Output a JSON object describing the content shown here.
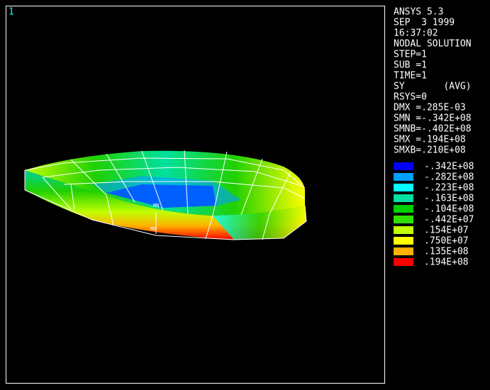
{
  "window": {
    "number": "1"
  },
  "info": [
    "ANSYS 5.3",
    "SEP  3 1999",
    "16:37:02",
    "NODAL SOLUTION",
    "STEP=1",
    "SUB =1",
    "TIME=1",
    "SY       (AVG)",
    "RSYS=0",
    "DMX =.285E-03",
    "SMN =-.342E+08",
    "SMNB=-.402E+08",
    "SMX =.194E+08",
    "SMXB=.210E+08"
  ],
  "legend": [
    {
      "color": "#0000ff",
      "label": "-.342E+08"
    },
    {
      "color": "#00a0ff",
      "label": "-.282E+08"
    },
    {
      "color": "#00ffff",
      "label": "-.223E+08"
    },
    {
      "color": "#00e0a0",
      "label": "-.163E+08"
    },
    {
      "color": "#00d000",
      "label": "-.104E+08"
    },
    {
      "color": "#30e000",
      "label": "-.442E+07"
    },
    {
      "color": "#c0ff00",
      "label": ".154E+07"
    },
    {
      "color": "#ffff00",
      "label": ".750E+07"
    },
    {
      "color": "#ffb000",
      "label": ".135E+08"
    },
    {
      "color": "#ff0000",
      "label": ".194E+08"
    }
  ],
  "markers": {
    "min": "MN",
    "max": "MX"
  }
}
